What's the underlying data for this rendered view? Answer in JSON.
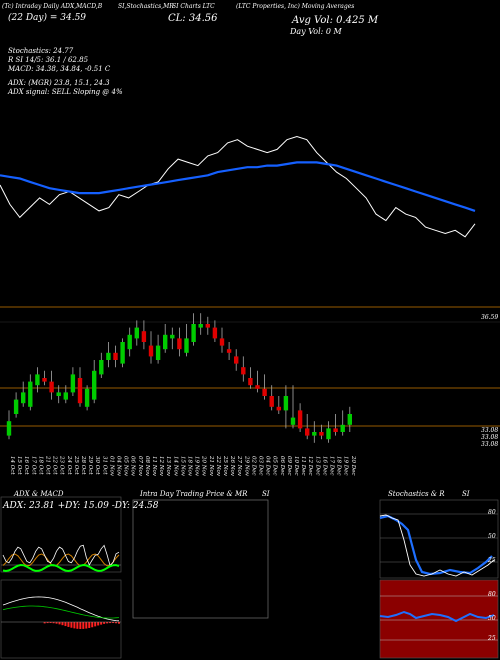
{
  "header": {
    "line1": "(Tc) Intraday Daily ADX,MACD,B",
    "line1b": "SI,Stochastics,MR",
    "line1c": "SI Charts LTC",
    "line1d": "(LTC Properties, Inc) Moving Averages",
    "price_line": "(22 Day) =  34.59",
    "close_label": "CL: 34.56",
    "avg_vol": "Avg Vol: 0.425  M",
    "day_vol": "Day Vol: 0   M",
    "stochastics": "Stochastics: 24.77",
    "stoch_r": "R              SI 14/5: 36.1 / 62.85",
    "macd": "MACD: 34.38, 34.84, -0.51  C",
    "adx": "ADX:                         (MGR) 23.8,  15.1,  24.3",
    "adx_signal": "ADX  signal: SELL  Sloping  @ 4%"
  },
  "price_axis": {
    "label_top": "36.59",
    "label_a": "33.08",
    "label_b": "33.08",
    "label_c": "33.08"
  },
  "dates": [
    "14 Oct",
    "15 Oct",
    "16 Oct",
    "17 Oct",
    "18 Oct",
    "21 Oct",
    "22 Oct",
    "23 Oct",
    "24 Oct",
    "25 Oct",
    "28 Oct",
    "29 Oct",
    "30 Oct",
    "31 Oct",
    "01 Nov",
    "04 Nov",
    "05 Nov",
    "06 Nov",
    "07 Nov",
    "08 Nov",
    "11 Nov",
    "12 Nov",
    "13 Nov",
    "14 Nov",
    "15 Nov",
    "18 Nov",
    "19 Nov",
    "20 Nov",
    "21 Nov",
    "22 Nov",
    "25 Nov",
    "26 Nov",
    "27 Nov",
    "29 Nov",
    "02 Dec",
    "03 Dec",
    "04 Dec",
    "05 Dec",
    "06 Dec",
    "09 Dec",
    "10 Dec",
    "11 Dec",
    "12 Dec",
    "13 Dec",
    "16 Dec",
    "17 Dec",
    "18 Dec",
    "19 Dec",
    "20 Dec"
  ],
  "panels": {
    "adx_title": "ADX  & MACD",
    "adx_values": "ADX: 23.81  +DY: 15.09  -DY: 24.58",
    "intra_title": "Intra  Day Trading Price  & MR",
    "intra_title_b": "SI",
    "stoch_title": "Stochastics & R",
    "stoch_title_b": "SI",
    "stoch_ticks": [
      "80",
      "50",
      "25"
    ],
    "rsi_ticks": [
      "80",
      "50",
      "25"
    ]
  },
  "colors": {
    "up": "#00cc00",
    "down": "#e00000",
    "ma": "#1560ff",
    "price_line": "#ffffff",
    "grid_orange": "#c87800",
    "rsi_bg": "#8b0000"
  },
  "chart_data": [
    {
      "type": "line",
      "title": "",
      "series": [
        {
          "values": [
            34.9,
            34.3,
            33.9,
            34.2,
            34.5,
            34.3,
            34.6,
            34.7,
            34.5,
            34.3,
            34.1,
            34.2,
            34.6,
            34.5,
            34.7,
            34.9,
            35.0,
            35.4,
            35.7,
            35.6,
            35.5,
            35.8,
            35.9,
            36.2,
            36.3,
            36.1,
            36.0,
            35.9,
            36.0,
            36.3,
            36.4,
            36.3,
            35.9,
            35.6,
            35.3,
            35.1,
            34.8,
            34.5,
            34.0,
            33.8,
            34.2,
            34.0,
            33.9,
            33.6,
            33.5,
            33.4,
            33.5,
            33.3,
            33.7
          ]
        },
        {
          "values": [
            35.2,
            35.15,
            35.1,
            35.0,
            34.9,
            34.8,
            34.75,
            34.7,
            34.65,
            34.65,
            34.65,
            34.7,
            34.75,
            34.8,
            34.85,
            34.9,
            34.95,
            35.0,
            35.05,
            35.1,
            35.15,
            35.2,
            35.3,
            35.35,
            35.4,
            35.45,
            35.45,
            35.5,
            35.5,
            35.55,
            35.6,
            35.6,
            35.6,
            35.55,
            35.5,
            35.4,
            35.3,
            35.2,
            35.1,
            35.0,
            34.9,
            34.8,
            34.7,
            34.6,
            34.5,
            34.4,
            34.3,
            34.2,
            34.1
          ]
        }
      ]
    },
    {
      "type": "candlestick",
      "x": [
        "14 Oct",
        "15 Oct",
        "16 Oct",
        "17 Oct",
        "18 Oct",
        "21 Oct",
        "22 Oct",
        "23 Oct",
        "24 Oct",
        "25 Oct",
        "28 Oct",
        "29 Oct",
        "30 Oct",
        "31 Oct",
        "01 Nov",
        "04 Nov",
        "05 Nov",
        "06 Nov",
        "07 Nov",
        "08 Nov",
        "11 Nov",
        "12 Nov",
        "13 Nov",
        "14 Nov",
        "15 Nov",
        "18 Nov",
        "19 Nov",
        "20 Nov",
        "21 Nov",
        "22 Nov",
        "25 Nov",
        "26 Nov",
        "27 Nov",
        "29 Nov",
        "02 Dec",
        "03 Dec",
        "04 Dec",
        "05 Dec",
        "06 Dec",
        "09 Dec",
        "10 Dec",
        "11 Dec",
        "12 Dec",
        "13 Dec",
        "16 Dec",
        "17 Dec",
        "18 Dec",
        "19 Dec",
        "20 Dec"
      ],
      "series": [
        {
          "name": "open",
          "values": [
            33.2,
            33.8,
            34.1,
            34.0,
            34.6,
            34.8,
            34.7,
            34.3,
            34.2,
            34.4,
            34.8,
            34.0,
            34.2,
            34.9,
            35.3,
            35.5,
            35.2,
            35.6,
            35.9,
            36.1,
            35.7,
            35.3,
            35.6,
            35.9,
            35.9,
            35.5,
            35.8,
            36.2,
            36.3,
            36.2,
            35.9,
            35.6,
            35.4,
            35.1,
            34.8,
            34.6,
            34.5,
            34.3,
            34.0,
            33.9,
            33.5,
            33.9,
            33.4,
            33.2,
            33.3,
            33.1,
            33.4,
            33.3,
            33.5
          ]
        },
        {
          "name": "high",
          "values": [
            33.9,
            34.4,
            34.7,
            34.9,
            35.1,
            35.0,
            35.0,
            34.6,
            34.6,
            35.1,
            35.1,
            34.6,
            35.3,
            35.5,
            35.8,
            35.7,
            35.9,
            36.2,
            36.4,
            36.4,
            36.1,
            36.0,
            36.3,
            36.2,
            36.2,
            36.3,
            36.6,
            36.6,
            36.5,
            36.4,
            36.2,
            35.8,
            35.6,
            35.4,
            35.1,
            35.0,
            34.9,
            34.6,
            34.3,
            34.6,
            34.6,
            34.1,
            33.8,
            33.6,
            33.5,
            33.6,
            33.8,
            33.9,
            34.0
          ]
        },
        {
          "name": "low",
          "values": [
            33.1,
            33.7,
            34.0,
            33.9,
            34.4,
            34.6,
            34.2,
            34.1,
            34.1,
            34.3,
            34.0,
            33.9,
            34.1,
            34.8,
            35.1,
            35.1,
            35.1,
            35.4,
            35.7,
            35.6,
            35.2,
            35.2,
            35.5,
            35.6,
            35.4,
            35.4,
            35.7,
            36.0,
            36.0,
            35.8,
            35.5,
            35.3,
            35.0,
            34.7,
            34.5,
            34.4,
            34.2,
            33.9,
            33.8,
            33.4,
            33.4,
            33.3,
            33.1,
            33.0,
            33.1,
            33.0,
            33.2,
            33.2,
            33.3
          ]
        },
        {
          "name": "close",
          "values": [
            33.6,
            34.2,
            34.4,
            34.7,
            34.9,
            34.7,
            34.4,
            34.4,
            34.4,
            34.9,
            34.1,
            34.5,
            35.0,
            35.3,
            35.5,
            35.3,
            35.8,
            36.0,
            36.2,
            35.8,
            35.4,
            35.7,
            36.0,
            36.0,
            35.6,
            35.9,
            36.3,
            36.3,
            36.2,
            35.9,
            35.7,
            35.5,
            35.2,
            34.9,
            34.6,
            34.5,
            34.3,
            34.0,
            33.9,
            34.3,
            33.7,
            33.4,
            33.2,
            33.3,
            33.2,
            33.4,
            33.3,
            33.5,
            33.8
          ]
        }
      ],
      "ylim": [
        32.8,
        36.8
      ]
    }
  ]
}
